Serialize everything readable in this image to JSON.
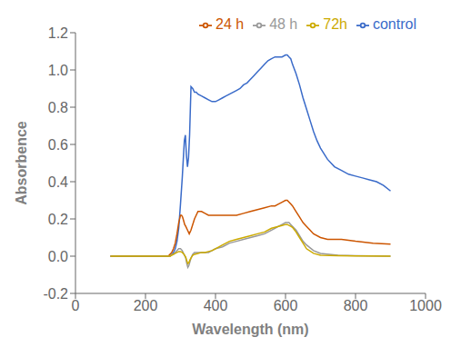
{
  "chart_data": {
    "type": "line",
    "xlabel": "Wavelength (nm)",
    "ylabel": "Absorbence",
    "xlim": [
      0,
      1000
    ],
    "ylim": [
      -0.2,
      1.2
    ],
    "xticks": [
      0,
      200,
      400,
      600,
      800,
      1000
    ],
    "yticks": [
      -0.2,
      {
        "value": 0.0,
        "label": "0.0"
      },
      0.2,
      0.4,
      0.6,
      0.8,
      {
        "value": 1.0,
        "label": "1.0"
      },
      1.2
    ],
    "grid": false,
    "legend": "upper right",
    "series": [
      {
        "name": "control",
        "color": "#3a6bc9",
        "x": [
          100,
          200,
          250,
          260,
          270,
          275,
          280,
          285,
          290,
          295,
          300,
          305,
          308,
          311,
          314,
          317,
          320,
          323,
          326,
          330,
          335,
          340,
          345,
          350,
          360,
          370,
          380,
          390,
          400,
          410,
          420,
          430,
          440,
          450,
          460,
          470,
          480,
          490,
          500,
          510,
          520,
          530,
          540,
          550,
          560,
          570,
          580,
          590,
          600,
          605,
          610,
          615,
          620,
          630,
          640,
          650,
          660,
          670,
          680,
          690,
          700,
          720,
          740,
          760,
          780,
          800,
          820,
          840,
          860,
          880,
          900
        ],
        "values": [
          0.0,
          0.0,
          0.0,
          0.0,
          0.0,
          0.01,
          0.02,
          0.04,
          0.08,
          0.15,
          0.28,
          0.42,
          0.52,
          0.62,
          0.65,
          0.54,
          0.48,
          0.53,
          0.65,
          0.91,
          0.9,
          0.88,
          0.88,
          0.87,
          0.86,
          0.85,
          0.84,
          0.83,
          0.83,
          0.84,
          0.85,
          0.86,
          0.87,
          0.88,
          0.89,
          0.9,
          0.92,
          0.93,
          0.95,
          0.97,
          0.99,
          1.01,
          1.03,
          1.05,
          1.06,
          1.07,
          1.07,
          1.07,
          1.08,
          1.08,
          1.07,
          1.06,
          1.03,
          0.98,
          0.92,
          0.85,
          0.79,
          0.73,
          0.67,
          0.62,
          0.58,
          0.52,
          0.48,
          0.46,
          0.44,
          0.43,
          0.42,
          0.41,
          0.4,
          0.38,
          0.35
        ]
      },
      {
        "name": "24 h",
        "color": "#cc5500",
        "x": [
          100,
          200,
          240,
          255,
          265,
          270,
          275,
          280,
          285,
          290,
          295,
          300,
          303,
          306,
          309,
          312,
          315,
          320,
          325,
          330,
          340,
          350,
          360,
          370,
          380,
          390,
          400,
          420,
          440,
          460,
          480,
          500,
          520,
          540,
          560,
          570,
          580,
          590,
          600,
          605,
          610,
          615,
          620,
          630,
          640,
          650,
          660,
          670,
          680,
          700,
          720,
          740,
          760,
          800,
          850,
          900
        ],
        "values": [
          0.0,
          0.0,
          0.0,
          0.0,
          0.0,
          0.01,
          0.02,
          0.04,
          0.07,
          0.12,
          0.18,
          0.22,
          0.22,
          0.21,
          0.19,
          0.17,
          0.16,
          0.14,
          0.12,
          0.14,
          0.2,
          0.24,
          0.24,
          0.23,
          0.22,
          0.22,
          0.22,
          0.22,
          0.22,
          0.22,
          0.23,
          0.24,
          0.25,
          0.26,
          0.27,
          0.27,
          0.28,
          0.29,
          0.3,
          0.3,
          0.29,
          0.28,
          0.27,
          0.24,
          0.21,
          0.18,
          0.16,
          0.14,
          0.12,
          0.1,
          0.09,
          0.09,
          0.09,
          0.08,
          0.07,
          0.065
        ]
      },
      {
        "name": "48 h",
        "color": "#999999",
        "x": [
          100,
          200,
          240,
          255,
          265,
          270,
          275,
          280,
          285,
          290,
          295,
          300,
          305,
          310,
          315,
          318,
          321,
          324,
          327,
          330,
          335,
          340,
          350,
          360,
          370,
          380,
          390,
          400,
          420,
          440,
          460,
          480,
          500,
          520,
          540,
          560,
          570,
          580,
          590,
          600,
          605,
          610,
          615,
          620,
          630,
          640,
          650,
          660,
          680,
          700,
          750,
          800,
          900
        ],
        "values": [
          0.0,
          0.0,
          0.0,
          0.0,
          0.0,
          0.0,
          0.01,
          0.01,
          0.02,
          0.03,
          0.04,
          0.04,
          0.03,
          0.01,
          -0.01,
          -0.04,
          -0.06,
          -0.05,
          -0.03,
          -0.01,
          0.01,
          0.02,
          0.02,
          0.02,
          0.02,
          0.02,
          0.03,
          0.04,
          0.05,
          0.07,
          0.08,
          0.09,
          0.1,
          0.11,
          0.12,
          0.14,
          0.15,
          0.16,
          0.17,
          0.18,
          0.18,
          0.18,
          0.17,
          0.16,
          0.14,
          0.11,
          0.08,
          0.06,
          0.03,
          0.015,
          0.005,
          0.002,
          0.0
        ]
      },
      {
        "name": "72h",
        "color": "#ccaa00",
        "x": [
          100,
          200,
          240,
          255,
          265,
          270,
          275,
          280,
          285,
          290,
          295,
          300,
          305,
          310,
          315,
          318,
          321,
          324,
          327,
          330,
          335,
          340,
          350,
          360,
          370,
          380,
          390,
          400,
          420,
          440,
          460,
          480,
          500,
          520,
          540,
          560,
          570,
          580,
          590,
          600,
          605,
          610,
          615,
          620,
          630,
          640,
          650,
          660,
          680,
          700,
          750,
          800,
          900
        ],
        "values": [
          0.0,
          0.0,
          0.0,
          0.0,
          0.0,
          0.0,
          0.005,
          0.01,
          0.015,
          0.02,
          0.025,
          0.025,
          0.02,
          0.01,
          -0.005,
          -0.025,
          -0.04,
          -0.035,
          -0.02,
          -0.01,
          0.005,
          0.01,
          0.015,
          0.02,
          0.02,
          0.025,
          0.03,
          0.04,
          0.06,
          0.08,
          0.09,
          0.1,
          0.11,
          0.12,
          0.13,
          0.15,
          0.155,
          0.16,
          0.165,
          0.17,
          0.17,
          0.165,
          0.16,
          0.155,
          0.13,
          0.1,
          0.07,
          0.04,
          0.015,
          0.005,
          0.002,
          0.001,
          0.0
        ]
      }
    ]
  }
}
